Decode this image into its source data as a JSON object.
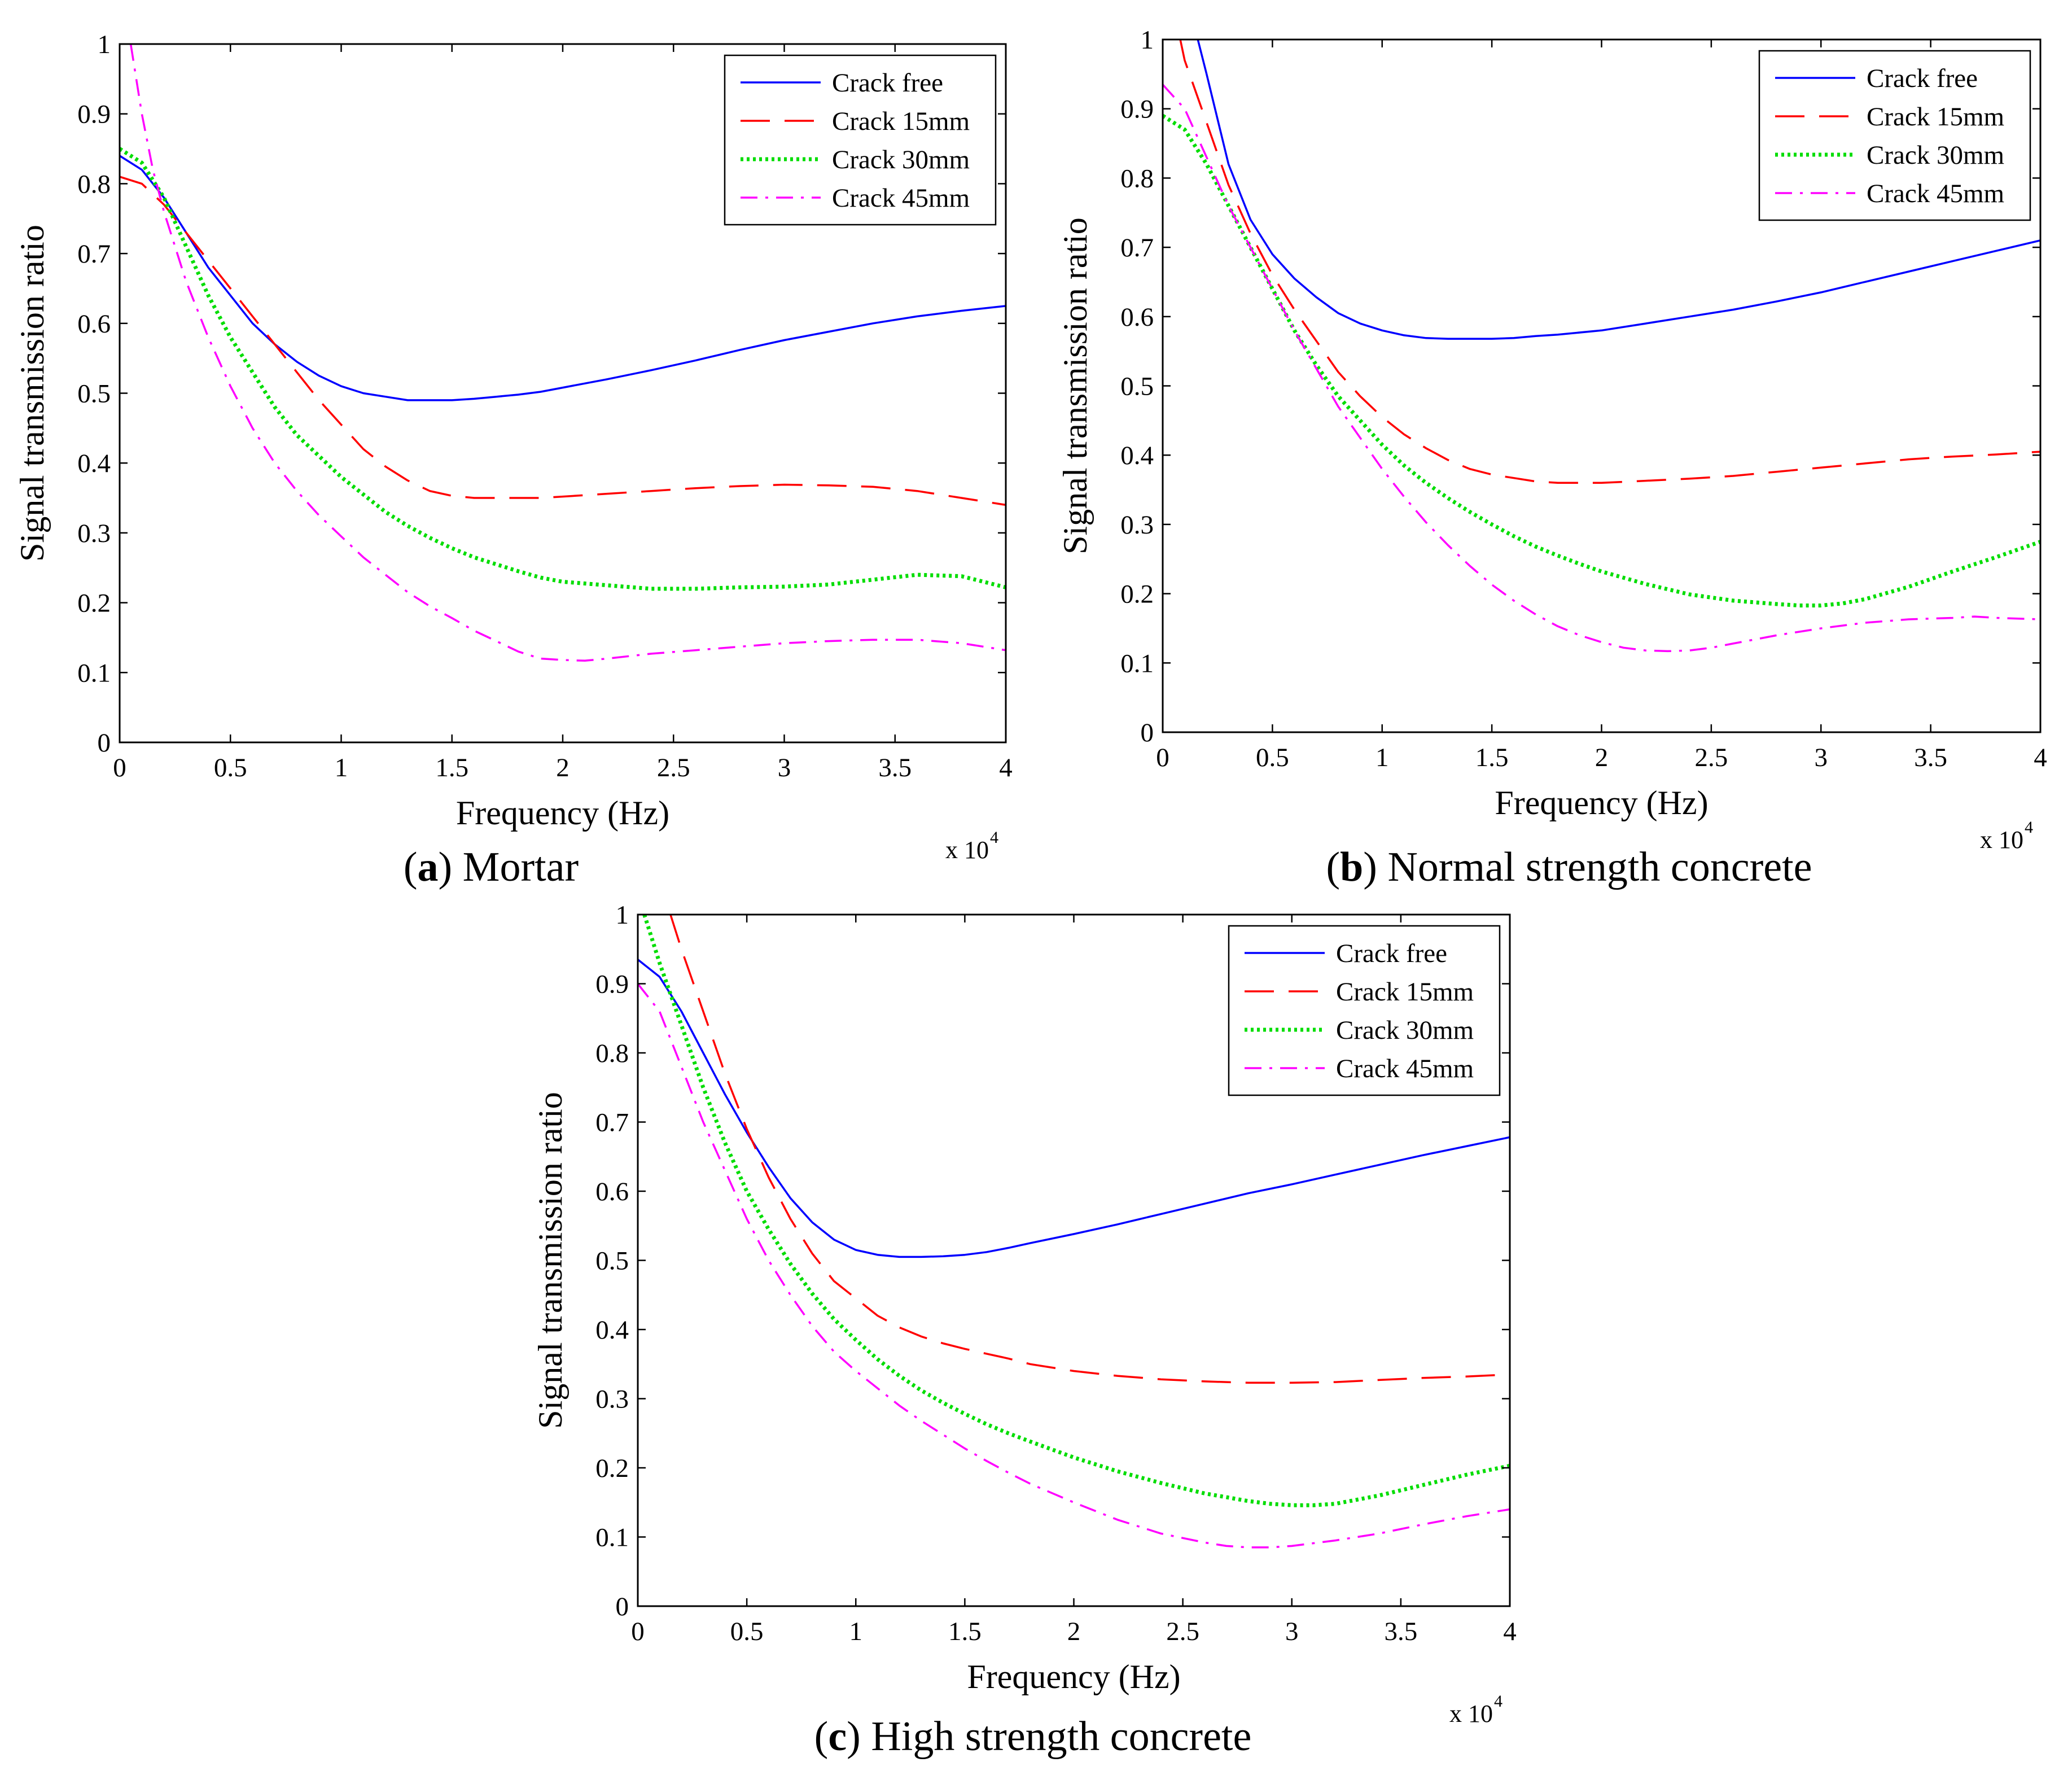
{
  "chart_data": [
    {
      "id": "a",
      "type": "line",
      "caption": {
        "letter": "a",
        "text": "Mortar"
      },
      "xlabel": "Frequency (Hz)",
      "ylabel": "Signal transmission ratio",
      "x_multiplier_label": "x 10",
      "x_multiplier_exp": "4",
      "xlim": [
        0,
        40000
      ],
      "ylim": [
        0,
        1
      ],
      "xticks": [
        0,
        5000,
        10000,
        15000,
        20000,
        25000,
        30000,
        35000,
        40000
      ],
      "xtick_labels": [
        "0",
        "0.5",
        "1",
        "1.5",
        "2",
        "2.5",
        "3",
        "3.5",
        "4"
      ],
      "yticks": [
        0,
        0.1,
        0.2,
        0.3,
        0.4,
        0.5,
        0.6,
        0.7,
        0.8,
        0.9,
        1
      ],
      "ytick_labels": [
        "0",
        "0.1",
        "0.2",
        "0.3",
        "0.4",
        "0.5",
        "0.6",
        "0.7",
        "0.8",
        "0.9",
        "1"
      ],
      "legend_position": "top-right",
      "series": [
        {
          "name": "Crack free",
          "color": "#0000ff",
          "dash": "solid",
          "x": [
            0,
            1000,
            2000,
            3000,
            4000,
            5000,
            6000,
            7000,
            8000,
            9000,
            10000,
            11000,
            12000,
            13000,
            14000,
            15000,
            16000,
            17000,
            18000,
            19000,
            20000,
            22000,
            24000,
            26000,
            28000,
            30000,
            32000,
            34000,
            36000,
            38000,
            40000
          ],
          "y": [
            0.84,
            0.82,
            0.78,
            0.73,
            0.68,
            0.64,
            0.6,
            0.57,
            0.545,
            0.525,
            0.51,
            0.5,
            0.495,
            0.49,
            0.49,
            0.49,
            0.492,
            0.495,
            0.498,
            0.502,
            0.508,
            0.52,
            0.533,
            0.547,
            0.562,
            0.576,
            0.588,
            0.6,
            0.61,
            0.618,
            0.625
          ]
        },
        {
          "name": "Crack 15mm",
          "color": "#ff0000",
          "dash": "long-dash",
          "x": [
            0,
            1000,
            2000,
            3000,
            4000,
            5000,
            6000,
            7000,
            8000,
            9000,
            10000,
            11000,
            12000,
            13000,
            14000,
            15000,
            16000,
            17000,
            18000,
            19000,
            20000,
            22000,
            24000,
            26000,
            28000,
            30000,
            32000,
            34000,
            36000,
            38000,
            40000
          ],
          "y": [
            0.81,
            0.8,
            0.77,
            0.73,
            0.69,
            0.65,
            0.61,
            0.57,
            0.53,
            0.49,
            0.455,
            0.42,
            0.395,
            0.375,
            0.36,
            0.353,
            0.35,
            0.35,
            0.35,
            0.35,
            0.352,
            0.356,
            0.36,
            0.364,
            0.367,
            0.369,
            0.368,
            0.366,
            0.36,
            0.35,
            0.34
          ]
        },
        {
          "name": "Crack 30mm",
          "color": "#00dd00",
          "dash": "dotted",
          "x": [
            0,
            1000,
            2000,
            3000,
            4000,
            5000,
            6000,
            7000,
            8000,
            9000,
            10000,
            11000,
            12000,
            13000,
            14000,
            15000,
            16000,
            17000,
            18000,
            19000,
            20000,
            22000,
            24000,
            26000,
            28000,
            30000,
            32000,
            34000,
            36000,
            38000,
            40000
          ],
          "y": [
            0.85,
            0.83,
            0.78,
            0.71,
            0.64,
            0.58,
            0.53,
            0.48,
            0.44,
            0.41,
            0.38,
            0.355,
            0.33,
            0.31,
            0.293,
            0.278,
            0.265,
            0.255,
            0.245,
            0.236,
            0.23,
            0.225,
            0.22,
            0.22,
            0.222,
            0.223,
            0.226,
            0.233,
            0.24,
            0.238,
            0.222
          ]
        },
        {
          "name": "Crack 45mm",
          "color": "#ff00ff",
          "dash": "dash-dot",
          "x": [
            500,
            1000,
            1500,
            2000,
            3000,
            4000,
            5000,
            6000,
            7000,
            8000,
            9000,
            10000,
            11000,
            12000,
            13000,
            14000,
            15000,
            16000,
            17000,
            18000,
            19000,
            20000,
            21000,
            22000,
            24000,
            26000,
            28000,
            30000,
            32000,
            34000,
            36000,
            38000,
            40000
          ],
          "y": [
            1.0,
            0.9,
            0.82,
            0.76,
            0.66,
            0.58,
            0.51,
            0.45,
            0.4,
            0.36,
            0.325,
            0.295,
            0.265,
            0.24,
            0.215,
            0.195,
            0.178,
            0.16,
            0.145,
            0.13,
            0.12,
            0.118,
            0.117,
            0.12,
            0.127,
            0.132,
            0.137,
            0.142,
            0.145,
            0.147,
            0.147,
            0.142,
            0.132
          ]
        }
      ]
    },
    {
      "id": "b",
      "type": "line",
      "caption": {
        "letter": "b",
        "text": "Normal strength concrete"
      },
      "xlabel": "Frequency (Hz)",
      "ylabel": "Signal transmission ratio",
      "x_multiplier_label": "x 10",
      "x_multiplier_exp": "4",
      "xlim": [
        0,
        40000
      ],
      "ylim": [
        0,
        1
      ],
      "xticks": [
        0,
        5000,
        10000,
        15000,
        20000,
        25000,
        30000,
        35000,
        40000
      ],
      "xtick_labels": [
        "0",
        "0.5",
        "1",
        "1.5",
        "2",
        "2.5",
        "3",
        "3.5",
        "4"
      ],
      "yticks": [
        0,
        0.1,
        0.2,
        0.3,
        0.4,
        0.5,
        0.6,
        0.7,
        0.8,
        0.9,
        1
      ],
      "ytick_labels": [
        "0",
        "0.1",
        "0.2",
        "0.3",
        "0.4",
        "0.5",
        "0.6",
        "0.7",
        "0.8",
        "0.9",
        "1"
      ],
      "legend_position": "top-right",
      "series": [
        {
          "name": "Crack free",
          "color": "#0000ff",
          "dash": "solid",
          "x": [
            1600,
            2000,
            3000,
            4000,
            5000,
            6000,
            7000,
            8000,
            9000,
            10000,
            11000,
            12000,
            13000,
            14000,
            15000,
            16000,
            17000,
            18000,
            20000,
            22000,
            24000,
            26000,
            28000,
            30000,
            32000,
            34000,
            36000,
            38000,
            40000
          ],
          "y": [
            1.0,
            0.95,
            0.82,
            0.74,
            0.69,
            0.655,
            0.628,
            0.605,
            0.59,
            0.58,
            0.573,
            0.569,
            0.568,
            0.568,
            0.568,
            0.569,
            0.572,
            0.574,
            0.58,
            0.59,
            0.6,
            0.61,
            0.622,
            0.635,
            0.65,
            0.665,
            0.68,
            0.695,
            0.71
          ]
        },
        {
          "name": "Crack 15mm",
          "color": "#ff0000",
          "dash": "long-dash",
          "x": [
            800,
            1000,
            2000,
            3000,
            4000,
            5000,
            6000,
            7000,
            8000,
            9000,
            10000,
            11000,
            12000,
            13000,
            14000,
            15000,
            16000,
            17000,
            18000,
            20000,
            22000,
            24000,
            26000,
            28000,
            30000,
            32000,
            34000,
            36000,
            38000,
            40000
          ],
          "y": [
            1.0,
            0.97,
            0.88,
            0.79,
            0.72,
            0.66,
            0.61,
            0.565,
            0.52,
            0.485,
            0.455,
            0.43,
            0.41,
            0.393,
            0.38,
            0.372,
            0.367,
            0.362,
            0.36,
            0.36,
            0.363,
            0.366,
            0.37,
            0.376,
            0.382,
            0.388,
            0.394,
            0.398,
            0.401,
            0.405
          ]
        },
        {
          "name": "Crack 30mm",
          "color": "#00dd00",
          "dash": "dotted",
          "x": [
            0,
            1000,
            2000,
            3000,
            4000,
            5000,
            6000,
            7000,
            8000,
            9000,
            10000,
            11000,
            12000,
            13000,
            14000,
            15000,
            16000,
            17000,
            18000,
            19000,
            20000,
            22000,
            24000,
            26000,
            28000,
            29000,
            30000,
            31000,
            32000,
            34000,
            36000,
            38000,
            40000
          ],
          "y": [
            0.89,
            0.87,
            0.82,
            0.76,
            0.7,
            0.64,
            0.58,
            0.53,
            0.485,
            0.45,
            0.415,
            0.385,
            0.36,
            0.338,
            0.318,
            0.3,
            0.283,
            0.268,
            0.255,
            0.243,
            0.232,
            0.214,
            0.199,
            0.19,
            0.185,
            0.183,
            0.183,
            0.186,
            0.192,
            0.21,
            0.232,
            0.253,
            0.275
          ]
        },
        {
          "name": "Crack 45mm",
          "color": "#ff00ff",
          "dash": "dash-dot",
          "x": [
            0,
            1000,
            2000,
            3000,
            4000,
            5000,
            6000,
            7000,
            8000,
            9000,
            10000,
            11000,
            12000,
            13000,
            14000,
            15000,
            16000,
            17000,
            18000,
            19000,
            20000,
            21000,
            22000,
            23000,
            24000,
            25000,
            26000,
            27000,
            28000,
            30000,
            32000,
            34000,
            36000,
            37000,
            38000,
            40000
          ],
          "y": [
            0.935,
            0.9,
            0.83,
            0.76,
            0.7,
            0.64,
            0.58,
            0.525,
            0.47,
            0.425,
            0.38,
            0.34,
            0.303,
            0.27,
            0.24,
            0.213,
            0.19,
            0.17,
            0.153,
            0.14,
            0.13,
            0.122,
            0.118,
            0.117,
            0.118,
            0.122,
            0.128,
            0.134,
            0.14,
            0.15,
            0.158,
            0.163,
            0.165,
            0.167,
            0.165,
            0.163
          ]
        }
      ]
    },
    {
      "id": "c",
      "type": "line",
      "caption": {
        "letter": "c",
        "text": "High strength concrete"
      },
      "xlabel": "Frequency (Hz)",
      "ylabel": "Signal transmission ratio",
      "x_multiplier_label": "x 10",
      "x_multiplier_exp": "4",
      "xlim": [
        0,
        40000
      ],
      "ylim": [
        0,
        1
      ],
      "xticks": [
        0,
        5000,
        10000,
        15000,
        20000,
        25000,
        30000,
        35000,
        40000
      ],
      "xtick_labels": [
        "0",
        "0.5",
        "1",
        "1.5",
        "2",
        "2.5",
        "3",
        "3.5",
        "4"
      ],
      "yticks": [
        0,
        0.1,
        0.2,
        0.3,
        0.4,
        0.5,
        0.6,
        0.7,
        0.8,
        0.9,
        1
      ],
      "ytick_labels": [
        "0",
        "0.1",
        "0.2",
        "0.3",
        "0.4",
        "0.5",
        "0.6",
        "0.7",
        "0.8",
        "0.9",
        "1"
      ],
      "legend_position": "top-right",
      "series": [
        {
          "name": "Crack free",
          "color": "#0000ff",
          "dash": "solid",
          "x": [
            0,
            1000,
            2000,
            3000,
            4000,
            5000,
            6000,
            7000,
            8000,
            9000,
            10000,
            11000,
            12000,
            13000,
            14000,
            15000,
            16000,
            17000,
            18000,
            20000,
            22000,
            24000,
            26000,
            28000,
            30000,
            32000,
            34000,
            36000,
            38000,
            40000
          ],
          "y": [
            0.935,
            0.91,
            0.86,
            0.8,
            0.74,
            0.685,
            0.635,
            0.59,
            0.555,
            0.53,
            0.515,
            0.508,
            0.505,
            0.505,
            0.506,
            0.508,
            0.512,
            0.518,
            0.525,
            0.538,
            0.552,
            0.567,
            0.582,
            0.597,
            0.61,
            0.624,
            0.638,
            0.652,
            0.665,
            0.678
          ]
        },
        {
          "name": "Crack 15mm",
          "color": "#ff0000",
          "dash": "long-dash",
          "x": [
            1500,
            2000,
            3000,
            4000,
            5000,
            6000,
            7000,
            8000,
            9000,
            10000,
            11000,
            12000,
            13000,
            14000,
            15000,
            16000,
            17000,
            18000,
            20000,
            22000,
            24000,
            26000,
            28000,
            30000,
            32000,
            34000,
            36000,
            38000,
            40000
          ],
          "y": [
            1.0,
            0.95,
            0.86,
            0.77,
            0.69,
            0.62,
            0.56,
            0.51,
            0.47,
            0.445,
            0.42,
            0.403,
            0.39,
            0.38,
            0.372,
            0.365,
            0.358,
            0.35,
            0.34,
            0.333,
            0.328,
            0.325,
            0.323,
            0.323,
            0.324,
            0.327,
            0.33,
            0.332,
            0.335
          ]
        },
        {
          "name": "Crack 30mm",
          "color": "#00dd00",
          "dash": "dotted",
          "x": [
            300,
            1000,
            2000,
            3000,
            4000,
            5000,
            6000,
            7000,
            8000,
            9000,
            10000,
            11000,
            12000,
            13000,
            14000,
            15000,
            16000,
            17000,
            18000,
            20000,
            22000,
            24000,
            26000,
            28000,
            29000,
            30000,
            31000,
            32000,
            34000,
            36000,
            38000,
            40000
          ],
          "y": [
            1.0,
            0.93,
            0.84,
            0.75,
            0.67,
            0.6,
            0.545,
            0.495,
            0.452,
            0.415,
            0.385,
            0.357,
            0.333,
            0.312,
            0.294,
            0.278,
            0.263,
            0.25,
            0.238,
            0.215,
            0.195,
            0.178,
            0.163,
            0.152,
            0.148,
            0.146,
            0.146,
            0.148,
            0.16,
            0.175,
            0.19,
            0.203
          ]
        },
        {
          "name": "Crack 45mm",
          "color": "#ff00ff",
          "dash": "dash-dot",
          "x": [
            0,
            1000,
            2000,
            3000,
            4000,
            5000,
            6000,
            7000,
            8000,
            9000,
            10000,
            11000,
            12000,
            13000,
            14000,
            15000,
            16000,
            17000,
            18000,
            20000,
            22000,
            24000,
            26000,
            27000,
            28000,
            29000,
            30000,
            32000,
            34000,
            36000,
            38000,
            40000
          ],
          "y": [
            0.9,
            0.86,
            0.78,
            0.7,
            0.63,
            0.56,
            0.5,
            0.45,
            0.405,
            0.368,
            0.34,
            0.315,
            0.29,
            0.268,
            0.248,
            0.228,
            0.21,
            0.193,
            0.177,
            0.15,
            0.125,
            0.105,
            0.092,
            0.087,
            0.085,
            0.085,
            0.087,
            0.095,
            0.105,
            0.118,
            0.13,
            0.14
          ]
        }
      ]
    }
  ]
}
